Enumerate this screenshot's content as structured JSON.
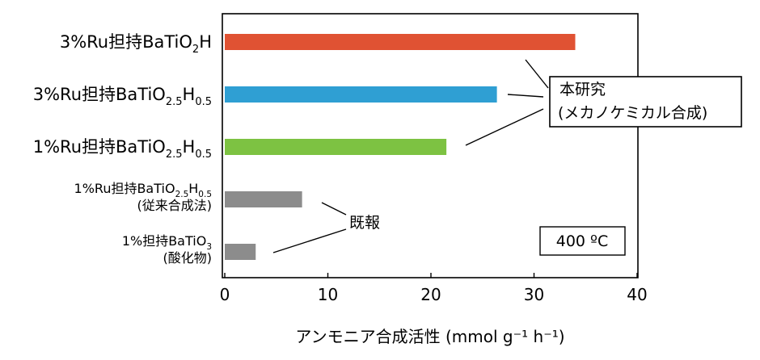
{
  "chart_data": {
    "type": "bar",
    "orientation": "horizontal",
    "categories": [
      {
        "main": "3%Ru担持BaTiO",
        "sub": "2",
        "tail": "H",
        "sub2": "",
        "line2": ""
      },
      {
        "main": "3%Ru担持BaTiO",
        "sub": "2.5",
        "tail": "H",
        "sub2": "0.5",
        "line2": ""
      },
      {
        "main": "1%Ru担持BaTiO",
        "sub": "2.5",
        "tail": "H",
        "sub2": "0.5",
        "line2": ""
      },
      {
        "main": "1%Ru担持BaTiO",
        "sub": "2.5",
        "tail": "H",
        "sub2": "0.5",
        "line2": "(従来合成法)"
      },
      {
        "main": "1%担持BaTiO",
        "sub": "3",
        "tail": "",
        "sub2": "",
        "line2": "(酸化物)"
      }
    ],
    "values": [
      34.0,
      26.4,
      21.5,
      7.5,
      3.0
    ],
    "colors": [
      "#e05233",
      "#2f9fd3",
      "#7dc242",
      "#8c8c8c",
      "#8c8c8c"
    ],
    "xlim": [
      0,
      40
    ],
    "xticks": [
      "0",
      "10",
      "20",
      "30",
      "40"
    ],
    "xlabel": "アンモニア合成活性 (mmol g⁻¹ h⁻¹)",
    "grid": false,
    "annotations": {
      "this_study_line1": "本研究",
      "this_study_line2": "(メカノケミカル合成)",
      "reported": "既報",
      "temperature": "400 ºC"
    }
  }
}
